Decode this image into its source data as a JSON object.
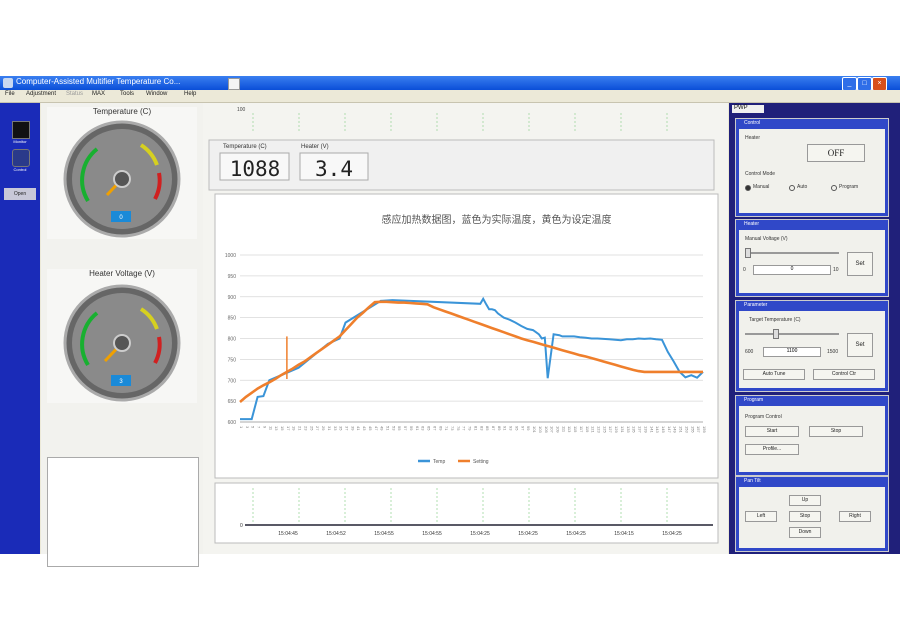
{
  "window": {
    "title": "Computer-Assisted Multifier Temperature Co..."
  },
  "menu": [
    "File",
    "Adjustment",
    "Status",
    "MAX",
    "Tools",
    "Window",
    "Help"
  ],
  "nav": {
    "item1": "Monitor",
    "item2": "Control",
    "panel": "Open"
  },
  "gauges": [
    {
      "label": "Temperature (C)",
      "readout": "0"
    },
    {
      "label": "Heater Voltage (V)",
      "readout": "3"
    }
  ],
  "center": {
    "top_label": "100",
    "temperature_label": "Temperature (C)",
    "temperature_value": "1088",
    "heater_label": "Heater (V)",
    "heater_value": "3.4",
    "bottom_axis_ticks": [
      "15:04:45",
      "15:04:52",
      "15:04:55",
      "15:04:55",
      "15:04:25",
      "15:04:25",
      "15:04:25",
      "15:04:15",
      "15:04:25"
    ],
    "bottom_axis_left": "0"
  },
  "chart_data": {
    "type": "line",
    "title": "感应加热数据图，蓝色为实际温度，黄色为设定温度",
    "xlabel": "",
    "ylabel": "",
    "ylim": [
      600,
      1000
    ],
    "yticks": [
      600,
      650,
      700,
      750,
      800,
      850,
      900,
      950,
      1000
    ],
    "xticks": [
      "1",
      "3",
      "5",
      "7",
      "9",
      "11",
      "13",
      "15",
      "17",
      "19",
      "21",
      "23",
      "25",
      "27",
      "29",
      "31",
      "33",
      "35",
      "37",
      "39",
      "41",
      "43",
      "45",
      "47",
      "49",
      "51",
      "53",
      "55",
      "57",
      "59",
      "61",
      "63",
      "65",
      "67",
      "69",
      "71",
      "73",
      "75",
      "77",
      "79",
      "81",
      "83",
      "85",
      "87",
      "89",
      "91",
      "93",
      "95",
      "97",
      "99",
      "101",
      "103",
      "105",
      "107",
      "109",
      "111",
      "113",
      "115",
      "117",
      "119",
      "121",
      "123",
      "125",
      "127",
      "129",
      "131",
      "133",
      "135",
      "137",
      "139",
      "141",
      "143",
      "145",
      "147",
      "149",
      "151",
      "153",
      "155",
      "157",
      "159"
    ],
    "legend": "bottom",
    "grid": true,
    "series": [
      {
        "name": "Temp",
        "color": "#3a94d8",
        "x": [
          1,
          5,
          7,
          9,
          11,
          21,
          31,
          35,
          37,
          49,
          53,
          83,
          84,
          85,
          86,
          87,
          88,
          89,
          90,
          91,
          93,
          95,
          97,
          99,
          101,
          102,
          103,
          104,
          105,
          106,
          108,
          110,
          111,
          112,
          113,
          114,
          115,
          117,
          119,
          121,
          123,
          125,
          127,
          129,
          131,
          133,
          135,
          137,
          139,
          141,
          143,
          145,
          147,
          149,
          151,
          153,
          155,
          157,
          159
        ],
        "y": [
          607,
          607,
          660,
          662,
          700,
          730,
          787,
          800,
          838,
          890,
          892,
          883,
          895,
          882,
          870,
          870,
          868,
          860,
          855,
          850,
          845,
          838,
          830,
          823,
          820,
          815,
          810,
          800,
          802,
          705,
          810,
          808,
          805,
          805,
          805,
          805,
          805,
          803,
          802,
          800,
          800,
          799,
          798,
          797,
          796,
          798,
          798,
          800,
          799,
          800,
          798,
          797,
          768,
          745,
          720,
          707,
          712,
          706,
          720
        ]
      },
      {
        "name": "Setting",
        "color": "#ef7f2c",
        "x": [
          1,
          3,
          5,
          7,
          9,
          11,
          13,
          15,
          17,
          19,
          21,
          23,
          25,
          27,
          29,
          31,
          33,
          35,
          37,
          39,
          41,
          43,
          45,
          47,
          49,
          51,
          53,
          55,
          57,
          59,
          61,
          63,
          65,
          67,
          69,
          71,
          73,
          75,
          77,
          79,
          81,
          83,
          85,
          87,
          89,
          91,
          93,
          95,
          97,
          99,
          101,
          103,
          105,
          107,
          109,
          111,
          113,
          115,
          117,
          119,
          121,
          123,
          125,
          127,
          129,
          131,
          133,
          135,
          137,
          139,
          141,
          143,
          145,
          147,
          149,
          151,
          153,
          155,
          157,
          159
        ],
        "y": [
          648,
          660,
          670,
          680,
          688,
          695,
          703,
          712,
          720,
          728,
          737,
          745,
          755,
          765,
          775,
          785,
          795,
          805,
          820,
          835,
          850,
          862,
          875,
          887,
          888,
          888,
          887,
          886,
          886,
          885,
          884,
          883,
          882,
          875,
          870,
          865,
          860,
          855,
          850,
          845,
          840,
          835,
          830,
          825,
          820,
          815,
          810,
          805,
          800,
          796,
          792,
          788,
          784,
          780,
          776,
          772,
          768,
          764,
          760,
          757,
          753,
          749,
          745,
          741,
          737,
          733,
          729,
          725,
          722,
          720,
          720,
          720,
          720,
          720,
          720,
          720,
          720,
          720,
          720,
          720
        ]
      }
    ],
    "spike": {
      "x": 17,
      "y_top": 805,
      "y_bottom": 703
    }
  },
  "right": {
    "tab": "PWP",
    "control": {
      "title": "Control",
      "heater_label": "Heater",
      "heater_btn": "OFF",
      "mode_label": "Control Mode",
      "modes": [
        "Manual",
        "Auto",
        "Program"
      ],
      "mode_selected": "Manual"
    },
    "heater": {
      "title": "Heater",
      "voltage_label": "Manual Voltage (V)",
      "min": "0",
      "max": "10",
      "value": "0",
      "set": "Set"
    },
    "parameter": {
      "title": "Parameter",
      "target_label": "Target Temperature (C)",
      "min": "600",
      "value": "1100",
      "max": "1500",
      "set": "Set",
      "btn1": "Auto Tune",
      "btn2": "Control Ctr"
    },
    "program": {
      "title": "Program",
      "label": "Program Control",
      "start": "Start",
      "stop": "Stop",
      "profile": "Profile..."
    },
    "move": {
      "title": "Pan Tilt",
      "up": "Up",
      "left": "Left",
      "stop": "Stop",
      "right": "Right",
      "down": "Down"
    }
  }
}
